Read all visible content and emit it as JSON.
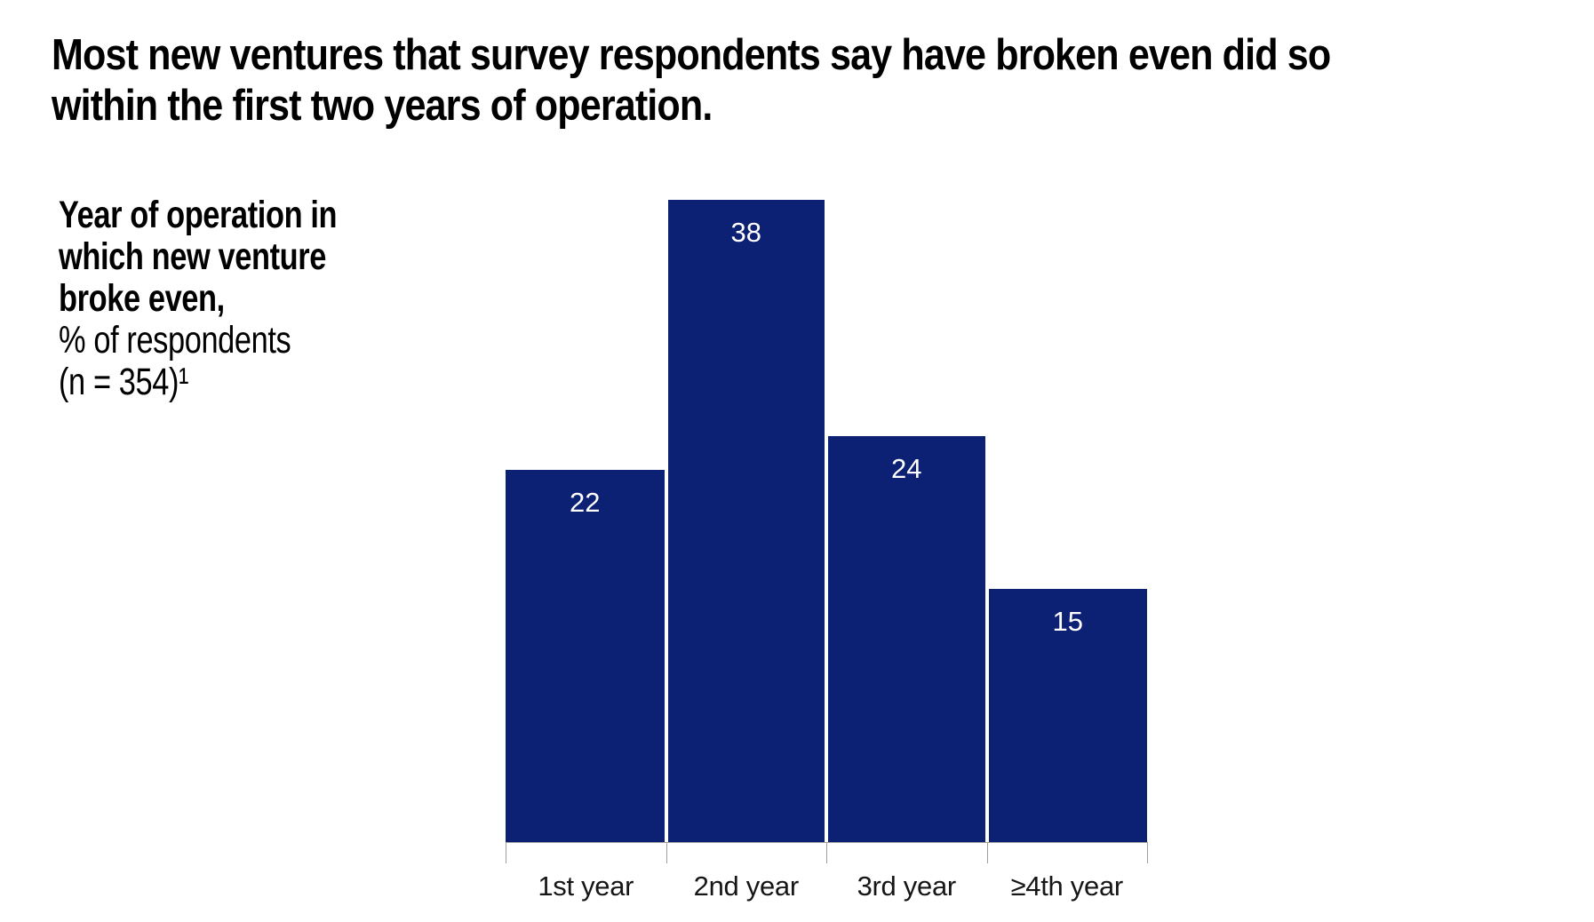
{
  "title": "Most new ventures that survey respondents say have broken even did so\nwithin the first two years of operation.",
  "side_label": {
    "bold": "Year of operation in\nwhich new venture\nbroke even,",
    "unit": "% of respondents",
    "sample": "(n = 354)¹"
  },
  "chart_data": {
    "type": "bar",
    "categories": [
      "1st year",
      "2nd year",
      "3rd year",
      "≥4th year"
    ],
    "values": [
      22,
      38,
      24,
      15
    ],
    "value_labels": [
      "22",
      "38",
      "24",
      "15"
    ],
    "title": "Year of operation in which new venture broke even, % of respondents (n = 354)¹",
    "xlabel": "",
    "ylabel": "% of respondents",
    "ylim": [
      0,
      40
    ],
    "grid": false,
    "legend": "none",
    "orientation": "vertical",
    "value_label_position": "inside-top",
    "axis": "x-baseline-with-ticks"
  },
  "colors": {
    "bar": "#0c2074",
    "bar_value_label": "#ffffff",
    "axis": "#9e9e9e",
    "title_text": "#000000",
    "axis_label_text": "#161616",
    "background": "#ffffff"
  }
}
